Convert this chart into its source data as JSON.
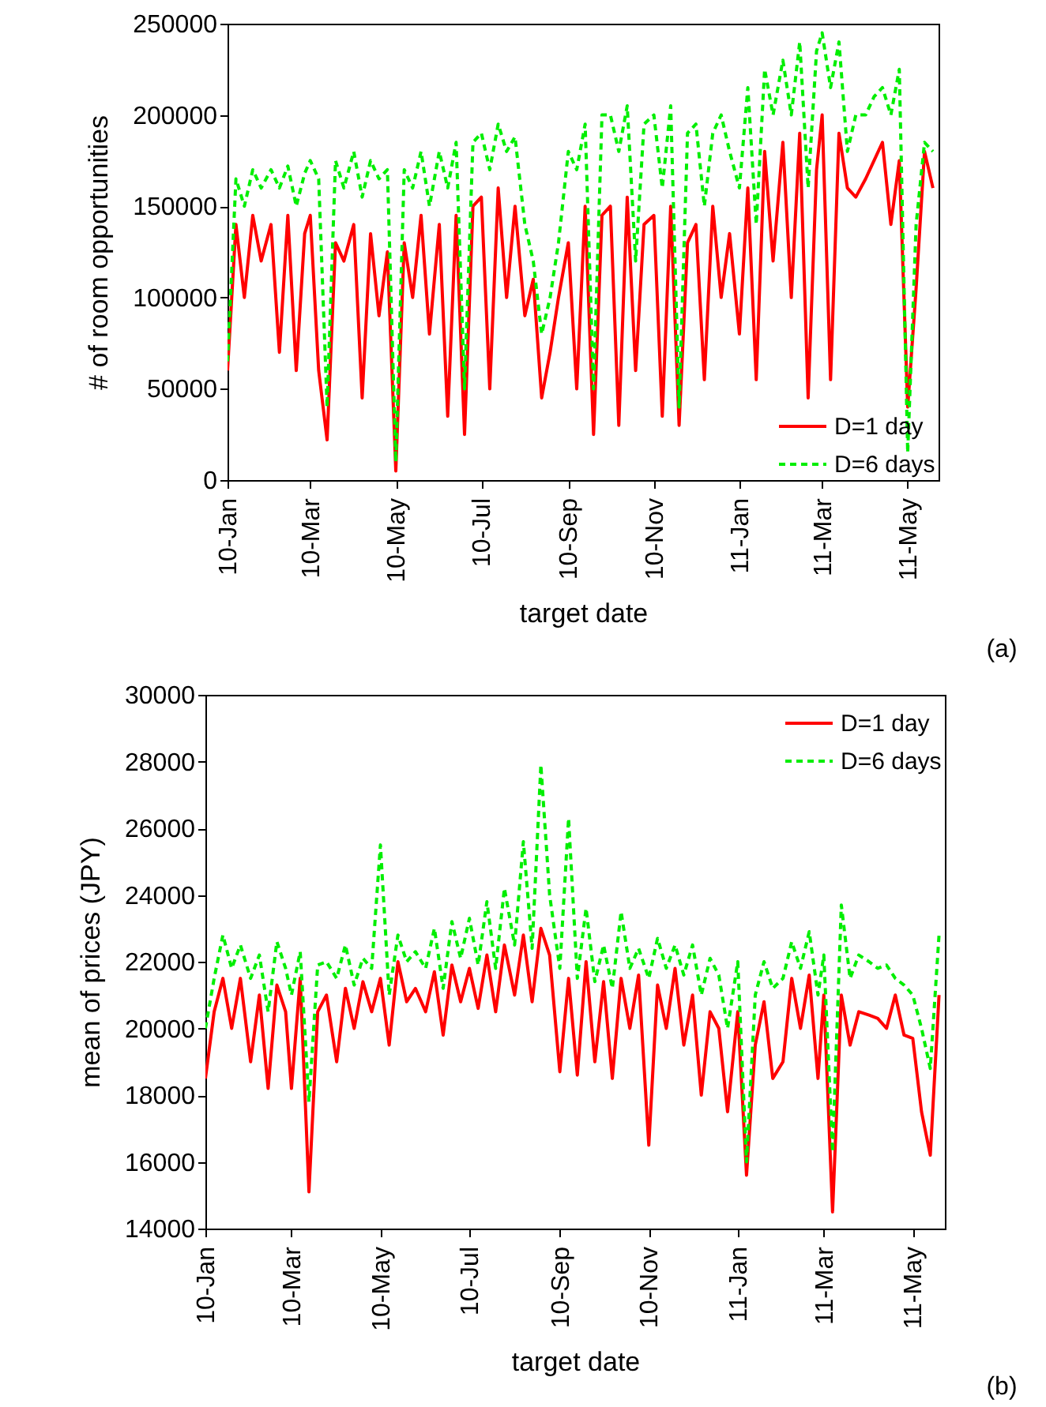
{
  "chart_data": [
    {
      "type": "line",
      "xlabel": "target date",
      "ylabel": "# of room opportunities",
      "legend": "bottom right",
      "annotations": [
        "(a)"
      ],
      "xlim": [
        "2010-01-01",
        "2011-05-23"
      ],
      "xticks": [
        {
          "value": "2010-01-01",
          "label": "10-Jan"
        },
        {
          "value": "2010-03-01",
          "label": "10-Mar"
        },
        {
          "value": "2010-05-01",
          "label": "10-May"
        },
        {
          "value": "2010-07-01",
          "label": "10-Jul"
        },
        {
          "value": "2010-09-01",
          "label": "10-Sep"
        },
        {
          "value": "2010-11-01",
          "label": "10-Nov"
        },
        {
          "value": "2011-01-01",
          "label": "11-Jan"
        },
        {
          "value": "2011-03-01",
          "label": "11-Mar"
        },
        {
          "value": "2011-05-01",
          "label": "11-May"
        }
      ],
      "ylim": [
        0,
        250000
      ],
      "yticks": [
        0,
        50000,
        100000,
        150000,
        200000,
        250000
      ],
      "x": [
        "2010-01-01",
        "2010-01-07",
        "2010-01-13",
        "2010-01-19",
        "2010-01-25",
        "2010-02-01",
        "2010-02-07",
        "2010-02-13",
        "2010-02-19",
        "2010-02-25",
        "2010-03-01",
        "2010-03-07",
        "2010-03-13",
        "2010-03-19",
        "2010-03-25",
        "2010-04-01",
        "2010-04-07",
        "2010-04-13",
        "2010-04-19",
        "2010-04-25",
        "2010-05-01",
        "2010-05-07",
        "2010-05-13",
        "2010-05-19",
        "2010-05-25",
        "2010-06-01",
        "2010-06-07",
        "2010-06-13",
        "2010-06-19",
        "2010-06-25",
        "2010-07-01",
        "2010-07-07",
        "2010-07-13",
        "2010-07-19",
        "2010-07-25",
        "2010-08-01",
        "2010-08-07",
        "2010-08-13",
        "2010-08-19",
        "2010-08-25",
        "2010-09-01",
        "2010-09-07",
        "2010-09-13",
        "2010-09-19",
        "2010-09-25",
        "2010-10-01",
        "2010-10-07",
        "2010-10-13",
        "2010-10-19",
        "2010-10-25",
        "2010-11-01",
        "2010-11-07",
        "2010-11-13",
        "2010-11-19",
        "2010-11-25",
        "2010-12-01",
        "2010-12-07",
        "2010-12-13",
        "2010-12-19",
        "2010-12-25",
        "2011-01-01",
        "2011-01-07",
        "2011-01-13",
        "2011-01-19",
        "2011-01-25",
        "2011-02-01",
        "2011-02-07",
        "2011-02-13",
        "2011-02-19",
        "2011-02-25",
        "2011-03-01",
        "2011-03-07",
        "2011-03-13",
        "2011-03-19",
        "2011-03-25",
        "2011-04-01",
        "2011-04-07",
        "2011-04-13",
        "2011-04-19",
        "2011-04-25",
        "2011-05-01",
        "2011-05-07",
        "2011-05-13",
        "2011-05-19"
      ],
      "series": [
        {
          "name": "D=1 day",
          "color": "#ff0000",
          "line_style": "solid",
          "values": [
            60000,
            140000,
            100000,
            145000,
            120000,
            140000,
            70000,
            145000,
            60000,
            135000,
            145000,
            60000,
            22000,
            130000,
            120000,
            140000,
            45000,
            135000,
            90000,
            125000,
            5000,
            130000,
            100000,
            145000,
            80000,
            140000,
            35000,
            145000,
            25000,
            150000,
            155000,
            50000,
            160000,
            100000,
            150000,
            90000,
            110000,
            45000,
            70000,
            100000,
            130000,
            50000,
            150000,
            25000,
            145000,
            150000,
            30000,
            155000,
            60000,
            140000,
            145000,
            35000,
            150000,
            30000,
            130000,
            140000,
            55000,
            150000,
            100000,
            135000,
            80000,
            160000,
            55000,
            180000,
            120000,
            185000,
            100000,
            190000,
            45000,
            170000,
            200000,
            55000,
            190000,
            160000,
            155000,
            165000,
            175000,
            185000,
            140000,
            175000,
            40000,
            105000,
            180000,
            160000
          ]
        },
        {
          "name": "D=6 days",
          "color": "#00ee00",
          "line_style": "dashed",
          "values": [
            65000,
            165000,
            150000,
            170000,
            160000,
            170000,
            160000,
            172000,
            150000,
            168000,
            175000,
            165000,
            40000,
            175000,
            160000,
            180000,
            155000,
            175000,
            165000,
            170000,
            10000,
            170000,
            160000,
            180000,
            150000,
            180000,
            160000,
            185000,
            50000,
            185000,
            190000,
            170000,
            195000,
            180000,
            188000,
            140000,
            120000,
            80000,
            100000,
            130000,
            180000,
            170000,
            195000,
            50000,
            200000,
            200000,
            180000,
            205000,
            120000,
            195000,
            200000,
            160000,
            205000,
            40000,
            190000,
            195000,
            150000,
            190000,
            200000,
            180000,
            160000,
            215000,
            140000,
            225000,
            200000,
            230000,
            200000,
            240000,
            160000,
            235000,
            245000,
            215000,
            240000,
            180000,
            200000,
            200000,
            210000,
            215000,
            200000,
            225000,
            15000,
            140000,
            185000,
            180000
          ]
        }
      ]
    },
    {
      "type": "line",
      "xlabel": "target date",
      "ylabel": "mean of prices (JPY)",
      "legend": "top right",
      "annotations": [
        "(b)"
      ],
      "xlim": [
        "2010-01-01",
        "2011-05-23"
      ],
      "xticks": [
        {
          "value": "2010-01-01",
          "label": "10-Jan"
        },
        {
          "value": "2010-03-01",
          "label": "10-Mar"
        },
        {
          "value": "2010-05-01",
          "label": "10-May"
        },
        {
          "value": "2010-07-01",
          "label": "10-Jul"
        },
        {
          "value": "2010-09-01",
          "label": "10-Sep"
        },
        {
          "value": "2010-11-01",
          "label": "10-Nov"
        },
        {
          "value": "2011-01-01",
          "label": "11-Jan"
        },
        {
          "value": "2011-03-01",
          "label": "11-Mar"
        },
        {
          "value": "2011-05-01",
          "label": "11-May"
        }
      ],
      "ylim": [
        14000,
        30000
      ],
      "yticks": [
        14000,
        16000,
        18000,
        20000,
        22000,
        24000,
        26000,
        28000,
        30000
      ],
      "x": [
        "2010-01-01",
        "2010-01-07",
        "2010-01-13",
        "2010-01-19",
        "2010-01-25",
        "2010-02-01",
        "2010-02-07",
        "2010-02-13",
        "2010-02-19",
        "2010-02-25",
        "2010-03-01",
        "2010-03-07",
        "2010-03-13",
        "2010-03-19",
        "2010-03-25",
        "2010-04-01",
        "2010-04-07",
        "2010-04-13",
        "2010-04-19",
        "2010-04-25",
        "2010-05-01",
        "2010-05-07",
        "2010-05-13",
        "2010-05-19",
        "2010-05-25",
        "2010-06-01",
        "2010-06-07",
        "2010-06-13",
        "2010-06-19",
        "2010-06-25",
        "2010-07-01",
        "2010-07-07",
        "2010-07-13",
        "2010-07-19",
        "2010-07-25",
        "2010-08-01",
        "2010-08-07",
        "2010-08-13",
        "2010-08-19",
        "2010-08-25",
        "2010-09-01",
        "2010-09-07",
        "2010-09-13",
        "2010-09-19",
        "2010-09-25",
        "2010-10-01",
        "2010-10-07",
        "2010-10-13",
        "2010-10-19",
        "2010-10-25",
        "2010-11-01",
        "2010-11-07",
        "2010-11-13",
        "2010-11-19",
        "2010-11-25",
        "2010-12-01",
        "2010-12-07",
        "2010-12-13",
        "2010-12-19",
        "2010-12-25",
        "2011-01-01",
        "2011-01-07",
        "2011-01-13",
        "2011-01-19",
        "2011-01-25",
        "2011-02-01",
        "2011-02-07",
        "2011-02-13",
        "2011-02-19",
        "2011-02-25",
        "2011-03-01",
        "2011-03-07",
        "2011-03-13",
        "2011-03-19",
        "2011-03-25",
        "2011-04-01",
        "2011-04-07",
        "2011-04-13",
        "2011-04-19",
        "2011-04-25",
        "2011-05-01",
        "2011-05-07",
        "2011-05-13",
        "2011-05-19"
      ],
      "series": [
        {
          "name": "D=1 day",
          "color": "#ff0000",
          "line_style": "solid",
          "values": [
            18500,
            20500,
            21500,
            20000,
            21500,
            19000,
            21000,
            18200,
            21300,
            20500,
            18200,
            21500,
            15100,
            20500,
            21000,
            19000,
            21200,
            20000,
            21400,
            20500,
            21500,
            19500,
            22000,
            20800,
            21200,
            20500,
            21700,
            19800,
            21900,
            20800,
            21800,
            20600,
            22200,
            20500,
            22500,
            21000,
            22800,
            20800,
            23000,
            22200,
            18700,
            21500,
            18600,
            22000,
            19000,
            21400,
            18500,
            21500,
            20000,
            21600,
            16500,
            21300,
            20000,
            21800,
            19500,
            21000,
            18000,
            20500,
            20000,
            17500,
            20500,
            15600,
            19500,
            20800,
            18500,
            19000,
            21500,
            20000,
            21600,
            18500,
            21000,
            14500,
            21000,
            19500,
            20500,
            20400,
            20300,
            20000,
            21000,
            19800,
            19700,
            17500,
            16200,
            21000
          ]
        },
        {
          "name": "D=6 days",
          "color": "#00ee00",
          "line_style": "dashed",
          "values": [
            20000,
            21500,
            22800,
            21800,
            22500,
            21500,
            22200,
            20500,
            22600,
            21800,
            21000,
            22300,
            17800,
            21900,
            22000,
            21500,
            22500,
            21300,
            22100,
            21800,
            25500,
            21000,
            22800,
            22000,
            22300,
            21800,
            23000,
            21200,
            23200,
            22100,
            23300,
            21900,
            23800,
            21800,
            24200,
            22500,
            25600,
            22400,
            27900,
            24000,
            21800,
            26300,
            21500,
            23600,
            21400,
            22500,
            21200,
            23500,
            21800,
            22400,
            21500,
            22700,
            21800,
            22500,
            21600,
            22500,
            21000,
            22100,
            21600,
            20000,
            22000,
            16000,
            21000,
            22000,
            21200,
            21500,
            22600,
            21800,
            22900,
            21000,
            22200,
            16300,
            23700,
            21500,
            22200,
            22000,
            21800,
            21900,
            21500,
            21300,
            21000,
            20000,
            18800,
            22800
          ]
        }
      ]
    }
  ]
}
